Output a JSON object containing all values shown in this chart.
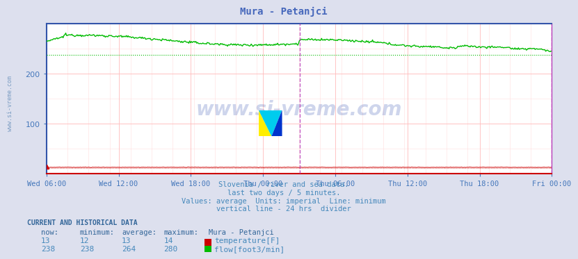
{
  "title": "Mura - Petanjci",
  "title_color": "#4466bb",
  "bg_color": "#dde0ee",
  "plot_bg_color": "#ffffff",
  "grid_color": "#ffbbbb",
  "grid_minor_color": "#ffdddd",
  "axis_color": "#3355aa",
  "tick_color": "#4477bb",
  "watermark": "www.si-vreme.com",
  "watermark_color": "#2244aa",
  "watermark_alpha": 0.22,
  "subtitle_lines": [
    "Slovenia / river and sea data.",
    "last two days / 5 minutes.",
    "Values: average  Units: imperial  Line: minimum",
    "vertical line - 24 hrs  divider"
  ],
  "subtitle_color": "#4488bb",
  "x_tick_labels": [
    "Wed 06:00",
    "Wed 12:00",
    "Wed 18:00",
    "Thu 00:00",
    "Thu 06:00",
    "Thu 12:00",
    "Thu 18:00",
    "Fri 00:00"
  ],
  "ylim": [
    0,
    300
  ],
  "yticks": [
    100,
    200
  ],
  "flow_min": 238,
  "flow_avg": 264,
  "flow_max": 280,
  "flow_now": 238,
  "temp_min": 12,
  "temp_avg": 13,
  "temp_max": 14,
  "temp_now": 13,
  "flow_line_color": "#00bb00",
  "flow_min_color": "#00bb00",
  "temp_line_color": "#cc0000",
  "divider_color": "#bb44bb",
  "bottom_spine_color": "#cc0000",
  "left_spine_color": "#3355aa",
  "right_spine_color": "#bb44bb",
  "top_spine_color": "#3355aa",
  "left_text_color": "#4477aa",
  "table_header_color": "#336699",
  "table_data_color": "#4488bb",
  "legend_temp_color": "#cc0000",
  "legend_flow_color": "#00bb00",
  "n_points": 576,
  "n_half": 288,
  "logo_yellow": "#ffee00",
  "logo_cyan": "#00ccee",
  "logo_blue": "#0033cc"
}
